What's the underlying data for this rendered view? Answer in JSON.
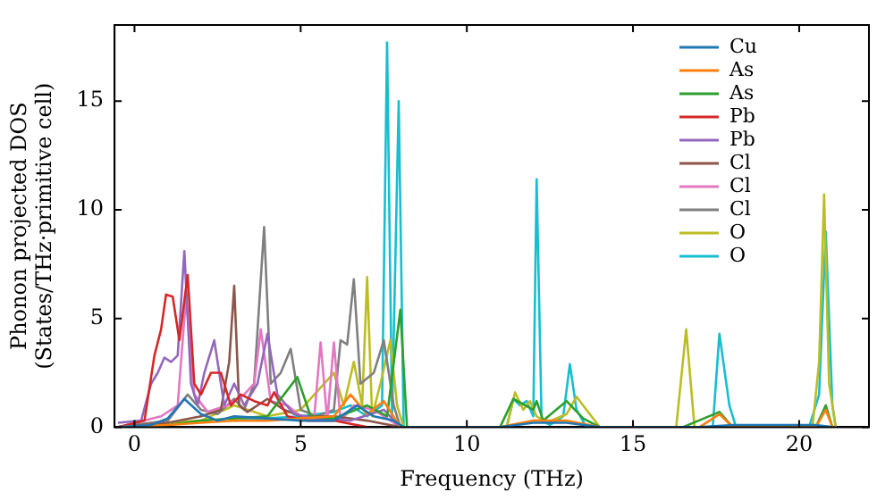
{
  "chart_data": {
    "type": "line",
    "xlabel": "Frequency (THz)",
    "ylabel": "Phonon projected DOS\n(States/THz·primitive cell)",
    "xlim": [
      -0.6,
      22.1
    ],
    "ylim": [
      0,
      18.5
    ],
    "xticks": [
      0,
      5,
      10,
      15,
      20
    ],
    "yticks": [
      0,
      5,
      10,
      15
    ],
    "grid": false,
    "legend": "top right",
    "marker": "none",
    "line_style": "solid",
    "series": [
      {
        "name": "Cu",
        "color": "#1f77b4",
        "x": [
          -0.5,
          0.5,
          1.0,
          1.5,
          2.0,
          2.5,
          3.0,
          4.0,
          5.0,
          6.0,
          6.7,
          7.2,
          7.8,
          8.1,
          11.0,
          12.0,
          13.0,
          14.0,
          17.0,
          18.0,
          20.5,
          21.0
        ],
        "values": [
          0,
          0.1,
          0.4,
          1.3,
          0.6,
          0.3,
          0.5,
          0.4,
          0.3,
          0.3,
          1.0,
          0.5,
          0.3,
          0,
          0,
          0.2,
          0.2,
          0,
          0,
          0.1,
          0.1,
          0
        ]
      },
      {
        "name": "As",
        "color": "#ff7f0e",
        "x": [
          -0.5,
          1.0,
          2.0,
          3.0,
          4.0,
          5.0,
          6.0,
          6.5,
          7.0,
          7.5,
          8.0,
          11.0,
          12.0,
          13.0,
          14.0,
          17.0,
          17.6,
          18.0,
          20.5,
          20.8,
          21.0
        ],
        "values": [
          0,
          0.1,
          0.2,
          0.3,
          0.3,
          0.4,
          0.5,
          1.5,
          0.6,
          1.2,
          0,
          0,
          0.3,
          0.3,
          0,
          0,
          0.6,
          0,
          0,
          0.8,
          0
        ]
      },
      {
        "name": "As",
        "color": "#2ca02c",
        "x": [
          -0.5,
          1.0,
          2.0,
          3.0,
          4.0,
          4.9,
          5.3,
          6.0,
          7.0,
          7.6,
          8.0,
          8.2,
          11.0,
          11.4,
          12.0,
          12.1,
          12.3,
          13.0,
          13.5,
          14.0,
          16.5,
          17.6,
          18.0,
          20.5,
          20.8,
          21.0
        ],
        "values": [
          0,
          0.1,
          0.3,
          0.4,
          0.5,
          2.3,
          0.5,
          0.4,
          1.0,
          0.5,
          5.4,
          0,
          0,
          1.3,
          0.8,
          1.2,
          0.3,
          1.2,
          0.4,
          0,
          0,
          0.7,
          0,
          0,
          1.0,
          0
        ]
      },
      {
        "name": "Pb",
        "color": "#d62728",
        "x": [
          -0.5,
          0.3,
          0.6,
          0.8,
          0.95,
          1.15,
          1.35,
          1.6,
          1.8,
          2.0,
          2.3,
          2.6,
          2.9,
          3.2,
          3.6,
          4.0,
          4.2,
          4.6,
          5.2,
          6.0,
          7.0
        ],
        "values": [
          0,
          0.3,
          3.3,
          4.5,
          6.1,
          6.0,
          4.0,
          7.0,
          2.0,
          1.5,
          2.5,
          2.5,
          1.0,
          1.5,
          1.2,
          1.0,
          1.6,
          0.5,
          0.3,
          0.3,
          0
        ]
      },
      {
        "name": "Pb",
        "color": "#9467bd",
        "x": [
          -0.5,
          0.2,
          0.5,
          0.7,
          0.9,
          1.1,
          1.3,
          1.5,
          1.7,
          1.9,
          2.1,
          2.4,
          2.7,
          3.0,
          3.3,
          3.7,
          4.0,
          4.3,
          4.8,
          5.5,
          6.5,
          7.5,
          8.0
        ],
        "values": [
          0.2,
          0.3,
          2.0,
          2.5,
          3.2,
          3.0,
          3.3,
          8.1,
          2.0,
          1.0,
          2.5,
          4.0,
          1.0,
          2.0,
          1.0,
          2.0,
          4.3,
          1.5,
          0.6,
          0.4,
          0.3,
          0.8,
          0
        ]
      },
      {
        "name": "Cl",
        "color": "#8c564b",
        "x": [
          -0.5,
          1.0,
          2.0,
          2.6,
          2.85,
          3.0,
          3.15,
          3.4,
          4.0,
          4.5,
          5.0,
          6.0,
          7.0,
          8.0
        ],
        "values": [
          0,
          0.2,
          0.5,
          0.8,
          3.0,
          6.5,
          1.0,
          0.7,
          1.3,
          0.8,
          0.5,
          0.5,
          0.3,
          0
        ]
      },
      {
        "name": "Cl",
        "color": "#e377c2",
        "x": [
          -0.5,
          0.8,
          1.3,
          1.55,
          1.8,
          2.2,
          2.8,
          3.3,
          3.6,
          3.8,
          4.1,
          4.6,
          5.0,
          5.4,
          5.6,
          5.8,
          6.0,
          6.2,
          6.6,
          7.2,
          8.0
        ],
        "values": [
          0,
          0.5,
          1.0,
          6.0,
          1.5,
          0.7,
          1.0,
          1.5,
          2.0,
          4.5,
          1.2,
          1.0,
          0.5,
          0.3,
          3.9,
          0.3,
          3.9,
          0.3,
          1.0,
          0.8,
          0
        ]
      },
      {
        "name": "Cl",
        "color": "#7f7f7f",
        "x": [
          -0.5,
          1.0,
          1.6,
          2.0,
          2.5,
          3.0,
          3.3,
          3.6,
          3.9,
          4.1,
          4.4,
          4.7,
          5.0,
          5.5,
          6.0,
          6.2,
          6.4,
          6.6,
          6.8,
          7.2,
          7.5,
          7.8,
          8.0
        ],
        "values": [
          0,
          0.3,
          1.5,
          0.8,
          0.6,
          1.3,
          0.8,
          2.0,
          9.2,
          2.0,
          2.5,
          3.6,
          0.8,
          0.5,
          0.8,
          4.0,
          3.8,
          6.8,
          2.0,
          2.5,
          4.0,
          1.0,
          0
        ]
      },
      {
        "name": "O",
        "color": "#bcbd22",
        "x": [
          -0.5,
          1.0,
          2.0,
          3.0,
          4.0,
          5.0,
          6.0,
          6.3,
          6.6,
          6.85,
          7.0,
          7.15,
          7.4,
          7.7,
          7.9,
          8.1,
          11.2,
          11.45,
          11.7,
          11.9,
          12.1,
          12.4,
          13.0,
          13.3,
          13.6,
          14.0,
          16.3,
          16.6,
          16.85,
          20.4,
          20.6,
          20.75,
          20.9,
          21.1
        ],
        "values": [
          0,
          0.2,
          0.3,
          1.0,
          0.5,
          0.8,
          2.5,
          1.0,
          3.0,
          1.0,
          6.9,
          0.5,
          2.0,
          4.0,
          1.0,
          0,
          0,
          1.6,
          0.8,
          1.2,
          0.5,
          0.2,
          0.6,
          1.4,
          0.8,
          0,
          0,
          4.5,
          0,
          0,
          3.0,
          10.7,
          2.0,
          0
        ]
      },
      {
        "name": "O",
        "color": "#17becf",
        "x": [
          3.0,
          4.0,
          5.0,
          6.0,
          6.5,
          7.0,
          7.45,
          7.6,
          7.75,
          7.95,
          8.1,
          11.2,
          11.4,
          11.6,
          11.8,
          12.0,
          12.1,
          12.25,
          12.5,
          12.9,
          13.1,
          13.3,
          13.6,
          17.4,
          17.6,
          17.9,
          18.1,
          20.3,
          20.6,
          20.8,
          21.0,
          21.1
        ],
        "values": [
          0.3,
          0.4,
          0.5,
          0.7,
          1.0,
          0.5,
          1.0,
          17.7,
          0.5,
          15.0,
          0,
          0,
          1.3,
          1.0,
          1.2,
          0.5,
          11.4,
          0.3,
          0.1,
          0.5,
          2.9,
          0.8,
          0,
          0,
          4.3,
          1.0,
          0,
          0,
          1.5,
          9.0,
          1.0,
          0
        ]
      }
    ]
  }
}
